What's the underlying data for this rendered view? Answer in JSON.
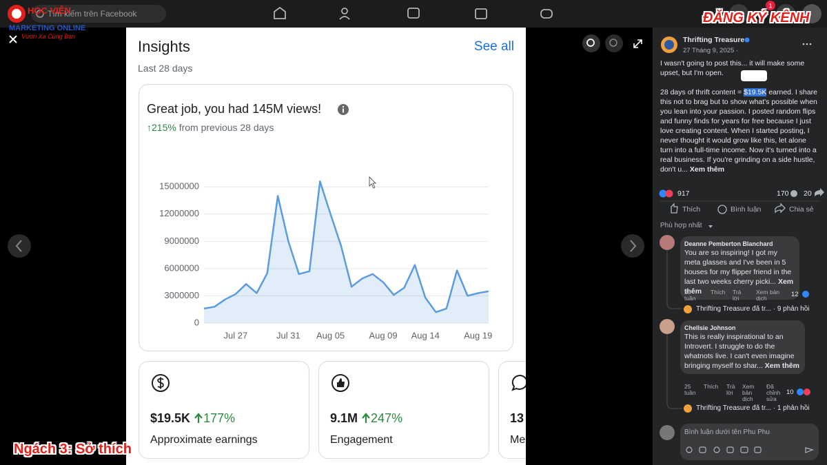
{
  "header": {
    "search": "Tìm kiếm trên Facebook",
    "notification_count": "1"
  },
  "watermark": {
    "brand": "HỌC VIỆN",
    "brand_line": "MARKETING ONLINE",
    "slogan": "Vươn Xa Cùng Bạn",
    "subscribe": "ĐĂNG KÝ KÊNH",
    "caption": "Ngách 3: Sở thích"
  },
  "insights": {
    "title": "Insights",
    "see_all": "See all",
    "period": "Last 28 days",
    "cards": [
      {
        "value": "$19.5K",
        "change": "177%",
        "label": "Approximate earnings"
      },
      {
        "value": "9.1M",
        "change": "247%",
        "label": "Engagement"
      },
      {
        "value": "13",
        "label": "Me"
      }
    ]
  },
  "chart_data": {
    "type": "line",
    "title": "Great job, you had 145M views!",
    "change": "↑215%",
    "change_note": "from previous 28 days",
    "categories": [
      null,
      null,
      null,
      "Jul 27",
      null,
      null,
      null,
      null,
      "Jul 31",
      null,
      null,
      null,
      "Aug 05",
      null,
      null,
      null,
      null,
      "Aug 09",
      null,
      null,
      null,
      "Aug 14",
      null,
      null,
      null,
      null,
      "Aug 19",
      null
    ],
    "values": [
      1600000,
      1800000,
      2600000,
      3200000,
      4300000,
      3300000,
      5500000,
      14000000,
      9000000,
      5400000,
      5700000,
      15600000,
      12000000,
      8500000,
      4000000,
      4900000,
      5400000,
      4500000,
      3100000,
      3900000,
      6400000,
      2800000,
      1200000,
      1600000,
      5800000,
      3000000,
      3300000,
      3500000
    ],
    "color": "#5b9be0",
    "area": true,
    "ylim": [
      0,
      16000000
    ],
    "yticks": [
      0,
      3000000,
      6000000,
      9000000,
      12000000,
      15000000
    ],
    "grid": true
  },
  "post": {
    "author": "Thrifting Treasure",
    "date": "27 Tháng 9, 2025 ·",
    "intro": "I wasn't going to post this... it will make some upset, but I'm open.",
    "body_start": "28 days of thrift content = ",
    "highlight": "$19.5K",
    "body_rest": " earned. I share this not to brag but to show what's possible when you lean into your passion. I posted random flips and funny finds for years for free because I just love creating content. When I started posting, I never thought it would grow like this, let alone turn into a full-time income. Now it's turned into a real business. If you're grinding on a side hustle, don't u...",
    "see_more": "Xem thêm",
    "reactions": "917",
    "comment_count": "170",
    "share_count": "20",
    "actions": [
      "Thích",
      "Bình luận",
      "Chia sẻ"
    ],
    "sort": "Phù hợp nhất"
  },
  "comments": [
    {
      "name": "Deanne Pemberton Blanchard",
      "text": "You are so inspiring! I got my meta glasses and I've been in 5 houses for my flipper friend in the last two weeks cherry picki...",
      "see_more": "Xem thêm",
      "meta": [
        "25 tuần",
        "Thích",
        "Trả lời",
        "Xem bản dịch"
      ],
      "reactions": "12",
      "reply": "Thrifting Treasure đã tr... · 9 phản hồi"
    },
    {
      "name": "Chellsie Johnson",
      "text": "This is really inspirational to an Introvert. I struggle to do the whatnots live. I can't even imagine bringing myself to shar...",
      "see_more": "Xem thêm",
      "meta": [
        "25 tuần",
        "Thích",
        "Trả lời",
        "Xem bản dịch",
        "Đã chỉnh sửa"
      ],
      "reactions": "10",
      "reply": "Thrifting Treasure đã tr... · 1 phản hồi"
    }
  ],
  "comment_box": {
    "placeholder": "Bình luận dưới tên Phu Phu"
  }
}
